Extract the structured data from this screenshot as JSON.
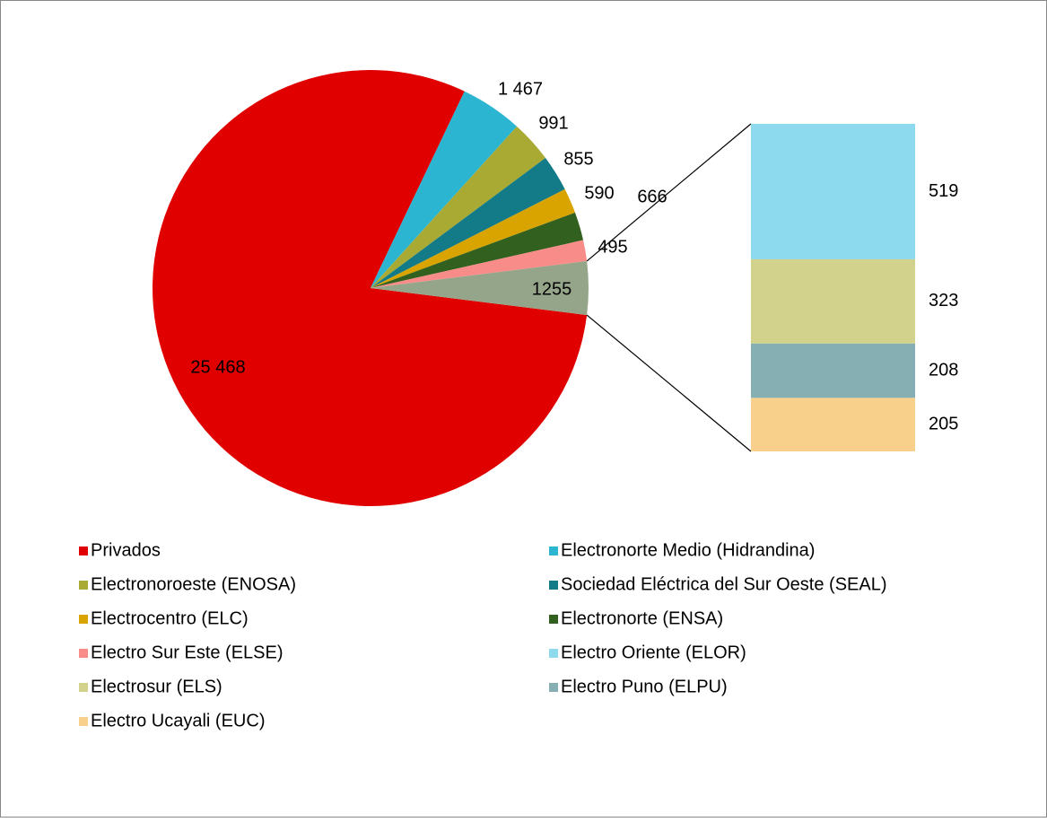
{
  "chart_data": {
    "type": "pie",
    "categories": [
      "Privados",
      "Electronorte Medio (Hidrandina)",
      "Electronoroeste (ENOSA)",
      "Sociedad Eléctrica del Sur Oeste (SEAL)",
      "Electrocentro (ELC)",
      "Electronorte (ENSA)",
      "Electro Sur Este (ELSE)"
    ],
    "values": [
      25468,
      1467,
      991,
      855,
      590,
      666,
      495
    ],
    "value_labels": [
      "25 468",
      "1 467",
      "991",
      "855",
      "590",
      "666",
      "495"
    ],
    "colors": [
      "#e00000",
      "#2bb5d1",
      "#a9aa33",
      "#127b87",
      "#d9a400",
      "#32601f",
      "#f88c88"
    ],
    "other": {
      "value": 1255,
      "color": "#95a58a"
    },
    "bar": {
      "categories": [
        "Electro Oriente (ELOR)",
        "Electrosur (ELS)",
        "Electro Puno (ELPU)",
        "Electro Ucayali (EUC)"
      ],
      "values": [
        519,
        323,
        208,
        205
      ],
      "colors": [
        "#8dd9ee",
        "#d3d28d",
        "#86afb3",
        "#f9d08b"
      ]
    }
  }
}
